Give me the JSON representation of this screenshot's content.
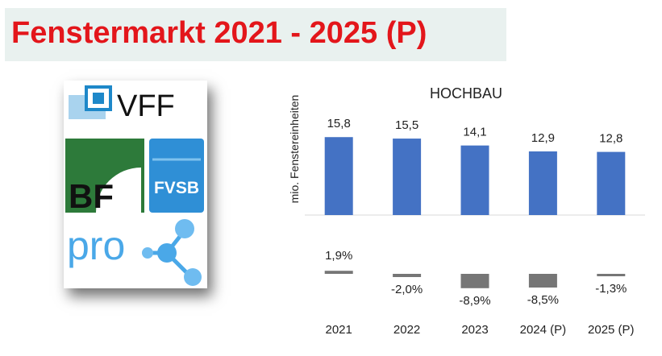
{
  "page": {
    "title": "Fenstermarkt 2021 - 2025 (P)"
  },
  "logos": {
    "vff": "VFF",
    "bf": "BF",
    "fvsb": "FVSB",
    "prok": "pro-K"
  },
  "colors": {
    "title": "#e3161b",
    "title_band": "#e9f1ef",
    "bar": "#4472c4",
    "change_bar": "#767676",
    "vff_blue": "#1e88c9",
    "bf_green": "#2d7a3a",
    "fvsb_blue": "#2f8fd6",
    "prok_blue": "#4aa8e8"
  },
  "chart_data": {
    "type": "bar",
    "title": "HOCHBAU",
    "ylabel": "mio. Fenstereinheiten",
    "categories": [
      "2021",
      "2022",
      "2023",
      "2024 (P)",
      "2025 (P)"
    ],
    "series": [
      {
        "values": [
          15.8,
          15.5,
          14.1,
          12.9,
          12.8
        ]
      }
    ],
    "value_labels": [
      "15,8",
      "15,5",
      "14,1",
      "12,9",
      "12,8"
    ],
    "change": {
      "values": [
        1.9,
        -2.0,
        -8.9,
        -8.5,
        -1.3
      ],
      "labels": [
        "1,9%",
        "-2,0%",
        "-8,9%",
        "-8,5%",
        "-1,3%"
      ]
    },
    "ylim": [
      0,
      24
    ],
    "grid": false,
    "legend": "none"
  }
}
